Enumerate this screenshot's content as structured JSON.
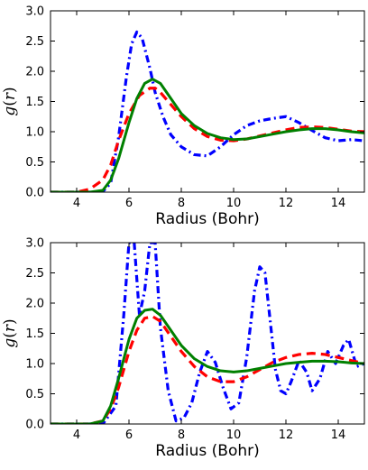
{
  "chart_data": [
    {
      "type": "line",
      "title": "",
      "xlabel": "Radius (Bohr)",
      "ylabel": "g(r)",
      "ylabel_parts": {
        "func": "g",
        "open": "(",
        "var": "r",
        "close": ")"
      },
      "xlim": [
        3,
        15
      ],
      "ylim": [
        0,
        3.0
      ],
      "xticks": [
        4,
        6,
        8,
        10,
        12,
        14
      ],
      "xtick_labels": [
        "4",
        "6",
        "8",
        "10",
        "12",
        "14"
      ],
      "yticks": [
        0,
        0.5,
        1.0,
        1.5,
        2.0,
        2.5,
        3.0
      ],
      "ytick_labels": [
        "0.0",
        "0.5",
        "1.0",
        "1.5",
        "2.0",
        "2.5",
        "3.0"
      ],
      "grid": false,
      "series": [
        {
          "color": "#0000ff",
          "style": "dashdot",
          "x": [
            3.0,
            4.5,
            5.0,
            5.3,
            5.6,
            5.9,
            6.1,
            6.3,
            6.5,
            6.8,
            7.0,
            7.3,
            7.6,
            8.0,
            8.5,
            9.0,
            9.5,
            10.0,
            10.5,
            11.0,
            11.5,
            12.0,
            12.5,
            13.0,
            13.5,
            14.0,
            14.5,
            15.0
          ],
          "y": [
            0.0,
            0.0,
            0.01,
            0.15,
            0.9,
            1.9,
            2.45,
            2.65,
            2.55,
            2.05,
            1.65,
            1.25,
            0.95,
            0.75,
            0.62,
            0.6,
            0.75,
            0.95,
            1.1,
            1.18,
            1.22,
            1.25,
            1.15,
            1.02,
            0.9,
            0.85,
            0.87,
            0.85
          ]
        },
        {
          "color": "#ff0000",
          "style": "dashed",
          "x": [
            3.0,
            4.0,
            4.5,
            5.0,
            5.3,
            5.6,
            6.0,
            6.4,
            6.8,
            7.0,
            7.2,
            7.6,
            8.0,
            8.5,
            9.0,
            9.5,
            10.0,
            10.5,
            11.0,
            11.5,
            12.0,
            12.5,
            13.0,
            13.5,
            14.0,
            14.5,
            15.0
          ],
          "y": [
            0.0,
            0.0,
            0.05,
            0.2,
            0.45,
            0.85,
            1.3,
            1.6,
            1.72,
            1.72,
            1.65,
            1.45,
            1.25,
            1.05,
            0.92,
            0.86,
            0.85,
            0.88,
            0.93,
            0.98,
            1.03,
            1.07,
            1.08,
            1.07,
            1.04,
            1.01,
            1.0
          ]
        },
        {
          "color": "#008000",
          "style": "solid",
          "x": [
            3.0,
            4.5,
            5.0,
            5.3,
            5.6,
            6.0,
            6.3,
            6.6,
            6.9,
            7.2,
            7.6,
            8.0,
            8.5,
            9.0,
            9.5,
            10.0,
            10.5,
            11.0,
            11.5,
            12.0,
            12.5,
            13.0,
            13.5,
            14.0,
            14.5,
            15.0
          ],
          "y": [
            0.0,
            0.0,
            0.03,
            0.2,
            0.55,
            1.15,
            1.55,
            1.8,
            1.87,
            1.8,
            1.55,
            1.3,
            1.1,
            0.97,
            0.9,
            0.87,
            0.88,
            0.92,
            0.96,
            1.0,
            1.03,
            1.05,
            1.05,
            1.03,
            1.0,
            0.98
          ]
        }
      ]
    },
    {
      "type": "line",
      "title": "",
      "xlabel": "Radius (Bohr)",
      "ylabel": "g(r)",
      "ylabel_parts": {
        "func": "g",
        "open": "(",
        "var": "r",
        "close": ")"
      },
      "xlim": [
        3,
        15
      ],
      "ylim": [
        0,
        3.0
      ],
      "xticks": [
        4,
        6,
        8,
        10,
        12,
        14
      ],
      "xtick_labels": [
        "4",
        "6",
        "8",
        "10",
        "12",
        "14"
      ],
      "yticks": [
        0,
        0.5,
        1.0,
        1.5,
        2.0,
        2.5,
        3.0
      ],
      "ytick_labels": [
        "0.0",
        "0.5",
        "1.0",
        "1.5",
        "2.0",
        "2.5",
        "3.0"
      ],
      "grid": false,
      "series": [
        {
          "color": "#0000ff",
          "style": "dashdot",
          "x": [
            3.0,
            5.0,
            5.5,
            5.8,
            6.0,
            6.2,
            6.4,
            6.6,
            6.8,
            7.0,
            7.2,
            7.5,
            7.8,
            8.1,
            8.4,
            8.7,
            9.0,
            9.3,
            9.6,
            9.9,
            10.2,
            10.5,
            10.8,
            11.0,
            11.2,
            11.4,
            11.6,
            11.8,
            12.0,
            12.2,
            12.5,
            12.8,
            13.0,
            13.3,
            13.6,
            13.9,
            14.2,
            14.4,
            14.7,
            15.0
          ],
          "y": [
            0.0,
            0.0,
            0.3,
            1.8,
            3.0,
            3.0,
            1.8,
            2.2,
            3.0,
            3.0,
            1.6,
            0.55,
            0.05,
            0.1,
            0.35,
            0.85,
            1.2,
            1.02,
            0.6,
            0.25,
            0.35,
            1.1,
            2.2,
            2.6,
            2.5,
            1.7,
            0.9,
            0.55,
            0.5,
            0.7,
            1.05,
            0.85,
            0.55,
            0.75,
            1.2,
            1.0,
            1.3,
            1.4,
            0.95,
            1.0
          ]
        },
        {
          "color": "#ff0000",
          "style": "dashed",
          "x": [
            3.0,
            4.5,
            5.0,
            5.3,
            5.6,
            6.0,
            6.3,
            6.6,
            6.9,
            7.2,
            7.6,
            8.0,
            8.5,
            9.0,
            9.5,
            10.0,
            10.5,
            11.0,
            11.5,
            12.0,
            12.5,
            13.0,
            13.5,
            14.0,
            14.5,
            15.0
          ],
          "y": [
            0.0,
            0.0,
            0.05,
            0.25,
            0.6,
            1.2,
            1.55,
            1.75,
            1.78,
            1.7,
            1.45,
            1.2,
            0.95,
            0.78,
            0.7,
            0.7,
            0.78,
            0.9,
            1.02,
            1.1,
            1.15,
            1.17,
            1.15,
            1.1,
            1.05,
            1.0
          ]
        },
        {
          "color": "#008000",
          "style": "solid",
          "x": [
            3.0,
            4.5,
            5.0,
            5.3,
            5.6,
            6.0,
            6.3,
            6.6,
            6.9,
            7.2,
            7.6,
            8.0,
            8.5,
            9.0,
            9.5,
            10.0,
            10.5,
            11.0,
            11.5,
            12.0,
            12.5,
            13.0,
            13.5,
            14.0,
            14.5,
            15.0
          ],
          "y": [
            0.0,
            0.0,
            0.05,
            0.3,
            0.75,
            1.4,
            1.75,
            1.88,
            1.9,
            1.8,
            1.55,
            1.3,
            1.08,
            0.95,
            0.88,
            0.86,
            0.88,
            0.92,
            0.96,
            1.0,
            1.02,
            1.04,
            1.04,
            1.03,
            1.01,
            1.0
          ]
        }
      ]
    }
  ]
}
